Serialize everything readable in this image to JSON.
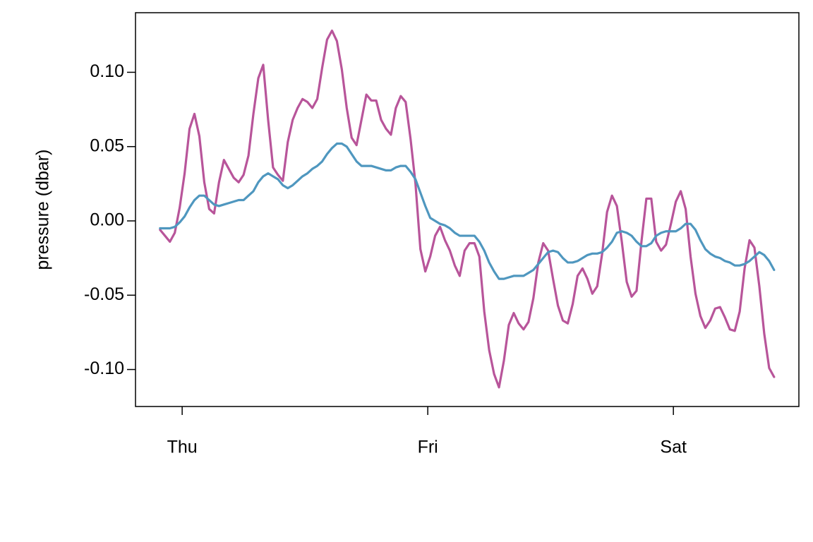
{
  "chart_data": {
    "type": "line",
    "ylabel": "pressure (dbar)",
    "x": [
      -0.09,
      -0.07,
      -0.05,
      -0.03,
      -0.01,
      0.01,
      0.03,
      0.05,
      0.07,
      0.09,
      0.11,
      0.13,
      0.15,
      0.17,
      0.19,
      0.21,
      0.23,
      0.25,
      0.27,
      0.29,
      0.31,
      0.33,
      0.35,
      0.37,
      0.39,
      0.41,
      0.43,
      0.45,
      0.47,
      0.49,
      0.51,
      0.53,
      0.55,
      0.57,
      0.59,
      0.61,
      0.63,
      0.65,
      0.67,
      0.69,
      0.71,
      0.73,
      0.75,
      0.77,
      0.79,
      0.81,
      0.83,
      0.85,
      0.87,
      0.89,
      0.91,
      0.93,
      0.95,
      0.97,
      0.99,
      1.01,
      1.03,
      1.05,
      1.07,
      1.09,
      1.11,
      1.13,
      1.15,
      1.17,
      1.19,
      1.21,
      1.23,
      1.25,
      1.27,
      1.29,
      1.31,
      1.33,
      1.35,
      1.37,
      1.39,
      1.41,
      1.43,
      1.45,
      1.47,
      1.49,
      1.51,
      1.53,
      1.55,
      1.57,
      1.59,
      1.61,
      1.63,
      1.65,
      1.67,
      1.69,
      1.71,
      1.73,
      1.75,
      1.77,
      1.79,
      1.81,
      1.83,
      1.85,
      1.87,
      1.89,
      1.91,
      1.93,
      1.95,
      1.97,
      1.99,
      2.01,
      2.03,
      2.05,
      2.07,
      2.09,
      2.11,
      2.13,
      2.15,
      2.17,
      2.19,
      2.21,
      2.23,
      2.25,
      2.27,
      2.29,
      2.31,
      2.33,
      2.35,
      2.37,
      2.39,
      2.41
    ],
    "series": [
      {
        "color": "#b8559a",
        "values": [
          -0.006,
          -0.01,
          -0.014,
          -0.008,
          0.009,
          0.032,
          0.062,
          0.072,
          0.057,
          0.026,
          0.008,
          0.005,
          0.026,
          0.041,
          0.035,
          0.029,
          0.026,
          0.031,
          0.044,
          0.072,
          0.096,
          0.105,
          0.068,
          0.036,
          0.031,
          0.027,
          0.053,
          0.068,
          0.076,
          0.082,
          0.08,
          0.076,
          0.082,
          0.103,
          0.122,
          0.128,
          0.121,
          0.102,
          0.076,
          0.056,
          0.051,
          0.068,
          0.085,
          0.081,
          0.081,
          0.068,
          0.062,
          0.058,
          0.076,
          0.084,
          0.08,
          0.055,
          0.025,
          -0.019,
          -0.034,
          -0.024,
          -0.01,
          -0.004,
          -0.013,
          -0.02,
          -0.03,
          -0.037,
          -0.02,
          -0.015,
          -0.015,
          -0.024,
          -0.061,
          -0.087,
          -0.103,
          -0.112,
          -0.094,
          -0.07,
          -0.062,
          -0.069,
          -0.073,
          -0.068,
          -0.052,
          -0.028,
          -0.015,
          -0.02,
          -0.039,
          -0.057,
          -0.067,
          -0.069,
          -0.056,
          -0.037,
          -0.032,
          -0.039,
          -0.049,
          -0.044,
          -0.022,
          0.006,
          0.017,
          0.01,
          -0.014,
          -0.041,
          -0.051,
          -0.047,
          -0.014,
          0.015,
          0.015,
          -0.014,
          -0.02,
          -0.016,
          -0.002,
          0.013,
          0.02,
          0.008,
          -0.024,
          -0.049,
          -0.064,
          -0.072,
          -0.067,
          -0.059,
          -0.058,
          -0.065,
          -0.073,
          -0.074,
          -0.061,
          -0.032,
          -0.013,
          -0.018,
          -0.044,
          -0.076,
          -0.099,
          -0.105
        ]
      },
      {
        "color": "#4f97bf",
        "values": [
          -0.005,
          -0.005,
          -0.005,
          -0.004,
          -0.001,
          0.003,
          0.009,
          0.014,
          0.017,
          0.017,
          0.014,
          0.011,
          0.01,
          0.011,
          0.012,
          0.013,
          0.014,
          0.014,
          0.017,
          0.02,
          0.026,
          0.03,
          0.032,
          0.03,
          0.028,
          0.024,
          0.022,
          0.024,
          0.027,
          0.03,
          0.032,
          0.035,
          0.037,
          0.04,
          0.045,
          0.049,
          0.052,
          0.052,
          0.05,
          0.045,
          0.04,
          0.037,
          0.037,
          0.037,
          0.036,
          0.035,
          0.034,
          0.034,
          0.036,
          0.037,
          0.037,
          0.033,
          0.028,
          0.019,
          0.01,
          0.002,
          0.0,
          -0.002,
          -0.003,
          -0.005,
          -0.008,
          -0.01,
          -0.01,
          -0.01,
          -0.01,
          -0.014,
          -0.02,
          -0.028,
          -0.034,
          -0.039,
          -0.039,
          -0.038,
          -0.037,
          -0.037,
          -0.037,
          -0.035,
          -0.033,
          -0.029,
          -0.025,
          -0.021,
          -0.02,
          -0.021,
          -0.025,
          -0.028,
          -0.028,
          -0.027,
          -0.025,
          -0.023,
          -0.022,
          -0.022,
          -0.021,
          -0.018,
          -0.014,
          -0.008,
          -0.007,
          -0.008,
          -0.01,
          -0.014,
          -0.017,
          -0.017,
          -0.015,
          -0.01,
          -0.008,
          -0.007,
          -0.007,
          -0.007,
          -0.005,
          -0.002,
          -0.002,
          -0.006,
          -0.013,
          -0.019,
          -0.022,
          -0.024,
          -0.025,
          -0.027,
          -0.028,
          -0.03,
          -0.03,
          -0.029,
          -0.027,
          -0.024,
          -0.021,
          -0.023,
          -0.027,
          -0.033
        ]
      }
    ],
    "xlim": [
      -0.19,
      2.511
    ],
    "xticks": [
      {
        "value": 0,
        "label": "Thu"
      },
      {
        "value": 1,
        "label": "Fri"
      },
      {
        "value": 2,
        "label": "Sat"
      }
    ],
    "ylim": [
      -0.1249,
      0.1401
    ],
    "yticks": [
      {
        "value": -0.1,
        "label": "-0.10"
      },
      {
        "value": -0.05,
        "label": "-0.05"
      },
      {
        "value": 0,
        "label": "0.00"
      },
      {
        "value": 0.05,
        "label": "0.05"
      },
      {
        "value": 0.1,
        "label": "0.10"
      }
    ],
    "grid": false
  }
}
